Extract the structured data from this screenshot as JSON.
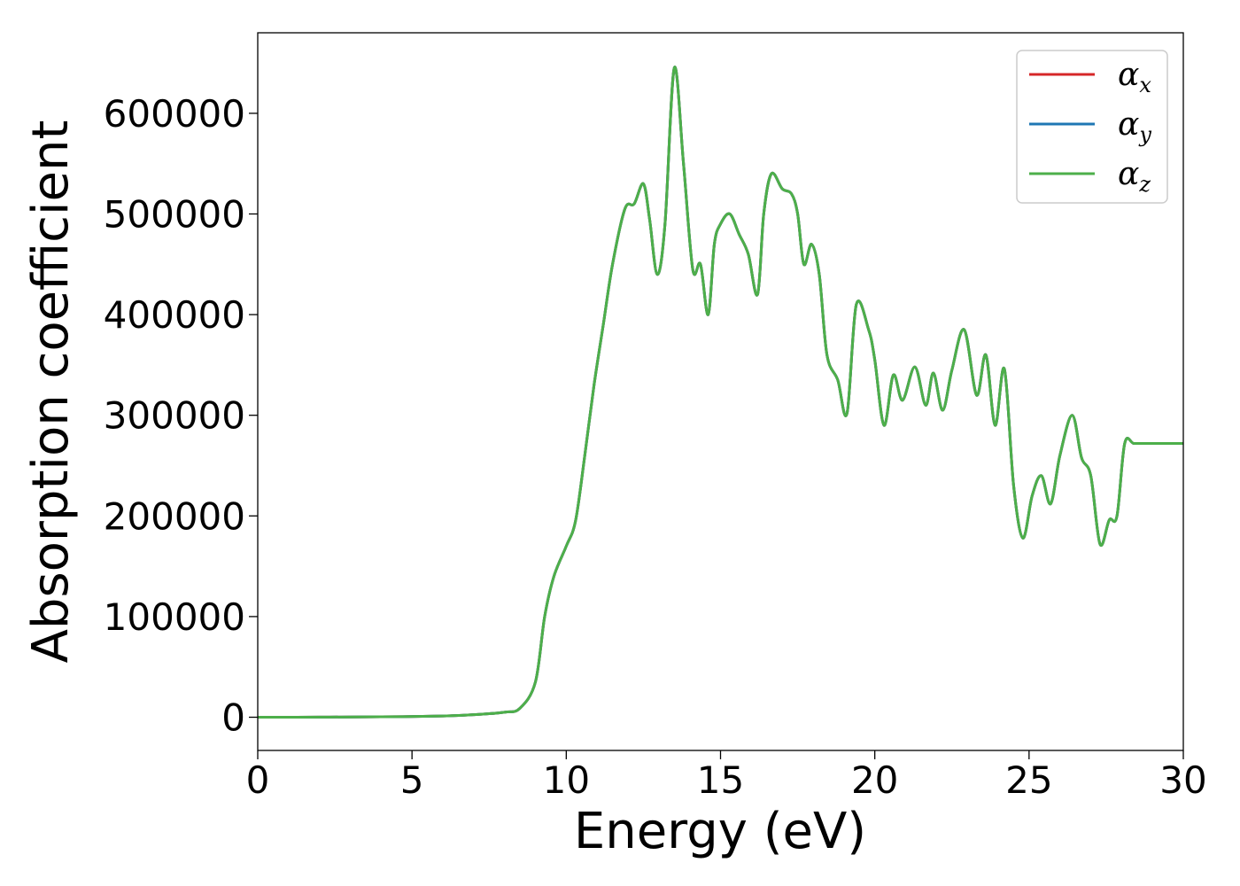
{
  "chart_data": {
    "type": "line",
    "title": "",
    "xlabel": "Energy (eV)",
    "ylabel": "Absorption coefficient",
    "xlim": [
      0,
      30
    ],
    "ylim": [
      -33000,
      680000
    ],
    "xticks": [
      0,
      5,
      10,
      15,
      20,
      25,
      30
    ],
    "yticks": [
      0,
      100000,
      200000,
      300000,
      400000,
      500000,
      600000
    ],
    "xtick_labels": [
      "0",
      "5",
      "10",
      "15",
      "20",
      "25",
      "30"
    ],
    "ytick_labels": [
      "0",
      "100000",
      "200000",
      "300000",
      "400000",
      "500000",
      "600000"
    ],
    "grid": false,
    "legend_position": "top-right",
    "colors": {
      "alpha_x": "#d62728",
      "alpha_y": "#1f77b4",
      "alpha_z": "#4daf4a"
    },
    "legend": [
      {
        "base": "α",
        "sub": "x",
        "color": "#d62728"
      },
      {
        "base": "α",
        "sub": "y",
        "color": "#1f77b4"
      },
      {
        "base": "α",
        "sub": "z",
        "color": "#4daf4a"
      }
    ],
    "x": [
      0,
      2,
      4,
      6,
      7,
      8,
      8.5,
      9.0,
      9.3,
      9.6,
      10.0,
      10.3,
      10.6,
      10.9,
      11.2,
      11.5,
      11.9,
      12.2,
      12.5,
      12.7,
      12.95,
      13.2,
      13.5,
      13.8,
      14.1,
      14.35,
      14.6,
      14.8,
      15.0,
      15.3,
      15.6,
      15.9,
      16.2,
      16.4,
      16.65,
      17.0,
      17.3,
      17.5,
      17.7,
      17.95,
      18.2,
      18.45,
      18.8,
      19.1,
      19.4,
      19.8,
      20.0,
      20.3,
      20.6,
      20.9,
      21.3,
      21.65,
      21.9,
      22.2,
      22.5,
      22.9,
      23.3,
      23.6,
      23.9,
      24.2,
      24.5,
      24.8,
      25.1,
      25.4,
      25.7,
      26.0,
      26.4,
      26.7,
      27.0,
      27.3,
      27.6,
      27.85,
      28.1,
      28.4,
      28.85,
      29.2,
      29.5,
      30.0
    ],
    "series": [
      {
        "name": "αx",
        "color": "#d62728",
        "values": [
          0,
          100,
          400,
          1200,
          2500,
          5000,
          9000,
          35000,
          100000,
          140000,
          170000,
          195000,
          260000,
          330000,
          390000,
          450000,
          505000,
          510000,
          530000,
          495000,
          440000,
          490000,
          645000,
          550000,
          445000,
          450000,
          400000,
          470000,
          490000,
          500000,
          480000,
          460000,
          420000,
          500000,
          540000,
          525000,
          520000,
          500000,
          450000,
          470000,
          440000,
          360000,
          335000,
          302000,
          410000,
          385000,
          355000,
          290000,
          340000,
          315000,
          348000,
          310000,
          342000,
          305000,
          345000,
          385000,
          320000,
          360000,
          290000,
          346000,
          230000,
          178000,
          220000,
          240000,
          212000,
          260000,
          300000,
          258000,
          240000,
          172000,
          196000,
          200000,
          272000,
          272000,
          272000,
          272000,
          272000,
          272000
        ]
      },
      {
        "name": "αy",
        "color": "#1f77b4",
        "values": [
          0,
          100,
          400,
          1200,
          2500,
          5000,
          9000,
          35000,
          100000,
          140000,
          170000,
          195000,
          260000,
          330000,
          390000,
          450000,
          505000,
          510000,
          530000,
          495000,
          440000,
          490000,
          645000,
          550000,
          445000,
          450000,
          400000,
          470000,
          490000,
          500000,
          480000,
          460000,
          420000,
          500000,
          540000,
          525000,
          520000,
          500000,
          450000,
          470000,
          440000,
          360000,
          335000,
          302000,
          410000,
          385000,
          355000,
          290000,
          340000,
          315000,
          348000,
          310000,
          342000,
          305000,
          345000,
          385000,
          320000,
          360000,
          290000,
          346000,
          230000,
          178000,
          220000,
          240000,
          212000,
          260000,
          300000,
          258000,
          240000,
          172000,
          196000,
          200000,
          272000,
          272000,
          272000,
          272000,
          272000,
          272000
        ]
      },
      {
        "name": "αz",
        "color": "#4daf4a",
        "values": [
          0,
          100,
          400,
          1200,
          2500,
          5000,
          9000,
          35000,
          100000,
          140000,
          170000,
          195000,
          260000,
          330000,
          390000,
          450000,
          505000,
          510000,
          530000,
          495000,
          440000,
          490000,
          645000,
          550000,
          445000,
          450000,
          400000,
          470000,
          490000,
          500000,
          480000,
          460000,
          420000,
          500000,
          540000,
          525000,
          520000,
          500000,
          450000,
          470000,
          440000,
          360000,
          335000,
          302000,
          410000,
          385000,
          355000,
          290000,
          340000,
          315000,
          348000,
          310000,
          342000,
          305000,
          345000,
          385000,
          320000,
          360000,
          290000,
          346000,
          230000,
          178000,
          220000,
          240000,
          212000,
          260000,
          300000,
          258000,
          240000,
          172000,
          196000,
          200000,
          272000,
          272000,
          272000,
          272000,
          272000,
          272000
        ]
      }
    ]
  }
}
